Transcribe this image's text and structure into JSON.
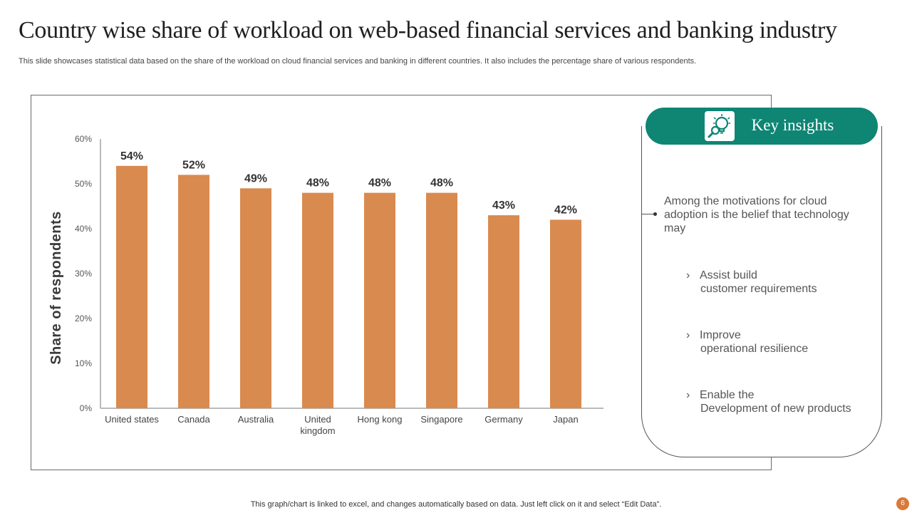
{
  "title": "Country wise share of workload on web-based financial services and banking industry",
  "subtitle": "This slide showcases statistical data based on the share of the workload on cloud financial services and banking in different countries. It also includes the percentage share of various respondents.",
  "chart_data": {
    "type": "bar",
    "categories": [
      "United states",
      "Canada",
      "Australia",
      "United kingdom",
      "Hong kong",
      "Singapore",
      "Germany",
      "Japan"
    ],
    "values": [
      54,
      52,
      49,
      48,
      48,
      48,
      43,
      42
    ],
    "value_labels": [
      "54%",
      "52%",
      "49%",
      "48%",
      "48%",
      "48%",
      "43%",
      "42%"
    ],
    "ylabel": "Share of respondents",
    "ylim": [
      0,
      60
    ],
    "yticks": [
      0,
      10,
      20,
      30,
      40,
      50,
      60
    ],
    "ytick_labels": [
      "0%",
      "10%",
      "20%",
      "30%",
      "40%",
      "50%",
      "60%"
    ],
    "bar_color": "#d98a4f",
    "grid": false,
    "legend": "none"
  },
  "insights": {
    "title": "Key insights",
    "icon": "lightbulb-search-icon",
    "header_color": "#0f8574",
    "intro": "Among the motivations for cloud adoption is the belief that technology may",
    "points": [
      {
        "line1": "Assist build",
        "line2": "customer requirements"
      },
      {
        "line1": "Improve",
        "line2": "operational resilience"
      },
      {
        "line1": "Enable the",
        "line2": "Development of new products"
      }
    ]
  },
  "footer": {
    "note": "This graph/chart is linked to excel,  and changes automatically based on data. Just left click on it and select “Edit Data”.",
    "page_number": "6",
    "badge_color": "#d97a3a"
  }
}
